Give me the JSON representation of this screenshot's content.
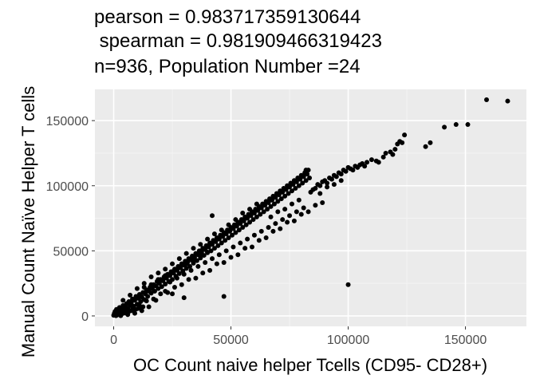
{
  "chart_data": {
    "type": "scatter",
    "title_lines": [
      "pearson = 0.983717359130644",
      " spearman = 0.981909466319423",
      "n=936, Population Number =24"
    ],
    "xlabel": "OC Count naive helper Tcells (CD95- CD28+)",
    "ylabel": "Manual Count Naïve Helper T cells",
    "xlim": [
      -8000,
      176000
    ],
    "ylim": [
      -8000,
      174000
    ],
    "x_ticks": [
      0,
      50000,
      100000,
      150000
    ],
    "x_tick_labels": [
      "0",
      "50000",
      "100000",
      "150000"
    ],
    "y_ticks": [
      0,
      50000,
      100000,
      150000
    ],
    "y_tick_labels": [
      "0",
      "50000",
      "100000",
      "150000"
    ],
    "grid": true,
    "panel_color": "#ebebeb",
    "point_color": "#000000",
    "points": [
      [
        0,
        500
      ],
      [
        300,
        2000
      ],
      [
        600,
        3500
      ],
      [
        900,
        1200
      ],
      [
        1200,
        5000
      ],
      [
        1500,
        2500
      ],
      [
        2000,
        4000
      ],
      [
        2500,
        6500
      ],
      [
        3000,
        3000
      ],
      [
        3500,
        5500
      ],
      [
        4000,
        8000
      ],
      [
        4500,
        4500
      ],
      [
        5000,
        7000
      ],
      [
        5500,
        9500
      ],
      [
        6000,
        6000
      ],
      [
        6500,
        11000
      ],
      [
        7000,
        8500
      ],
      [
        7500,
        10000
      ],
      [
        8000,
        13000
      ],
      [
        8500,
        7500
      ],
      [
        9000,
        12000
      ],
      [
        9500,
        15000
      ],
      [
        10000,
        9000
      ],
      [
        10500,
        13500
      ],
      [
        11000,
        16500
      ],
      [
        11500,
        11000
      ],
      [
        12000,
        14500
      ],
      [
        12500,
        18000
      ],
      [
        13000,
        12500
      ],
      [
        13500,
        17000
      ],
      [
        14000,
        20000
      ],
      [
        14500,
        15000
      ],
      [
        15000,
        19000
      ],
      [
        15500,
        22000
      ],
      [
        16000,
        17500
      ],
      [
        16500,
        21000
      ],
      [
        17000,
        24000
      ],
      [
        17500,
        19000
      ],
      [
        18000,
        23000
      ],
      [
        18500,
        26500
      ],
      [
        19000,
        21000
      ],
      [
        19500,
        25000
      ],
      [
        20000,
        28000
      ],
      [
        20500,
        22500
      ],
      [
        21000,
        27000
      ],
      [
        21500,
        30000
      ],
      [
        22000,
        24500
      ],
      [
        22500,
        29000
      ],
      [
        23000,
        32000
      ],
      [
        23500,
        26500
      ],
      [
        24000,
        31000
      ],
      [
        24500,
        34000
      ],
      [
        25000,
        28000
      ],
      [
        25500,
        33000
      ],
      [
        26000,
        36000
      ],
      [
        26500,
        30500
      ],
      [
        27000,
        35000
      ],
      [
        27500,
        38000
      ],
      [
        28000,
        32500
      ],
      [
        28500,
        37000
      ],
      [
        29000,
        40000
      ],
      [
        29500,
        34500
      ],
      [
        30000,
        39000
      ],
      [
        30500,
        42000
      ],
      [
        31000,
        36500
      ],
      [
        31500,
        41000
      ],
      [
        32000,
        44000
      ],
      [
        32500,
        38000
      ],
      [
        33000,
        43000
      ],
      [
        33500,
        46000
      ],
      [
        34000,
        40500
      ],
      [
        34500,
        45000
      ],
      [
        35000,
        48000
      ],
      [
        35500,
        42500
      ],
      [
        36000,
        47000
      ],
      [
        36500,
        50000
      ],
      [
        37000,
        44500
      ],
      [
        37500,
        49000
      ],
      [
        38000,
        52000
      ],
      [
        38500,
        46500
      ],
      [
        39000,
        51000
      ],
      [
        39500,
        54000
      ],
      [
        40000,
        48500
      ],
      [
        40500,
        53000
      ],
      [
        41000,
        56000
      ],
      [
        41500,
        50000
      ],
      [
        42000,
        55000
      ],
      [
        42500,
        58000
      ],
      [
        43000,
        52000
      ],
      [
        43500,
        57000
      ],
      [
        44000,
        60000
      ],
      [
        44500,
        54000
      ],
      [
        45000,
        59000
      ],
      [
        45500,
        62000
      ],
      [
        46000,
        56000
      ],
      [
        46500,
        61000
      ],
      [
        47000,
        64000
      ],
      [
        47500,
        58000
      ],
      [
        48000,
        63000
      ],
      [
        48500,
        66000
      ],
      [
        49000,
        60000
      ],
      [
        49500,
        65000
      ],
      [
        50000,
        68000
      ],
      [
        50500,
        62000
      ],
      [
        51000,
        67000
      ],
      [
        51500,
        70000
      ],
      [
        52000,
        64000
      ],
      [
        52500,
        69000
      ],
      [
        53000,
        72000
      ],
      [
        53500,
        66000
      ],
      [
        54000,
        71000
      ],
      [
        54500,
        74000
      ],
      [
        55000,
        68000
      ],
      [
        55500,
        73000
      ],
      [
        56000,
        76000
      ],
      [
        56500,
        70000
      ],
      [
        57000,
        75000
      ],
      [
        57500,
        78000
      ],
      [
        58000,
        72000
      ],
      [
        58500,
        77000
      ],
      [
        59000,
        80000
      ],
      [
        59500,
        74000
      ],
      [
        60000,
        79000
      ],
      [
        60500,
        82000
      ],
      [
        61000,
        76000
      ],
      [
        61500,
        81000
      ],
      [
        62000,
        84000
      ],
      [
        62500,
        78000
      ],
      [
        63000,
        83000
      ],
      [
        63500,
        86000
      ],
      [
        64000,
        80000
      ],
      [
        64500,
        85000
      ],
      [
        65000,
        88000
      ],
      [
        65500,
        82000
      ],
      [
        66000,
        87000
      ],
      [
        66500,
        90000
      ],
      [
        67000,
        84000
      ],
      [
        67500,
        89000
      ],
      [
        68000,
        92000
      ],
      [
        68500,
        86000
      ],
      [
        69000,
        91000
      ],
      [
        69500,
        94000
      ],
      [
        70000,
        88000
      ],
      [
        70500,
        93000
      ],
      [
        71000,
        96000
      ],
      [
        71500,
        90000
      ],
      [
        72000,
        95000
      ],
      [
        72500,
        98000
      ],
      [
        73000,
        92000
      ],
      [
        73500,
        97000
      ],
      [
        74000,
        100000
      ],
      [
        74500,
        94000
      ],
      [
        75000,
        99000
      ],
      [
        75500,
        102000
      ],
      [
        76000,
        96000
      ],
      [
        76500,
        101000
      ],
      [
        77000,
        104000
      ],
      [
        77500,
        98000
      ],
      [
        78000,
        103000
      ],
      [
        78500,
        106000
      ],
      [
        79000,
        100000
      ],
      [
        79500,
        105000
      ],
      [
        80000,
        108000
      ],
      [
        80500,
        102000
      ],
      [
        81000,
        107000
      ],
      [
        81500,
        110000
      ],
      [
        82000,
        104000
      ],
      [
        82500,
        109000
      ],
      [
        83000,
        112000
      ],
      [
        83500,
        106000
      ],
      [
        2000,
        1500
      ],
      [
        5000,
        3500
      ],
      [
        8000,
        6500
      ],
      [
        11000,
        8000
      ],
      [
        14000,
        11500
      ],
      [
        17000,
        13000
      ],
      [
        20000,
        17000
      ],
      [
        23000,
        18000
      ],
      [
        26000,
        22000
      ],
      [
        29000,
        24000
      ],
      [
        32000,
        28000
      ],
      [
        35000,
        29000
      ],
      [
        38000,
        33000
      ],
      [
        41000,
        35000
      ],
      [
        44000,
        40000
      ],
      [
        47000,
        41000
      ],
      [
        50000,
        45000
      ],
      [
        53000,
        47000
      ],
      [
        56000,
        52000
      ],
      [
        59000,
        53000
      ],
      [
        62000,
        58000
      ],
      [
        65000,
        60000
      ],
      [
        68000,
        65000
      ],
      [
        71000,
        67000
      ],
      [
        74000,
        72000
      ],
      [
        77000,
        73000
      ],
      [
        80000,
        78000
      ],
      [
        83000,
        80000
      ],
      [
        86000,
        85000
      ],
      [
        89000,
        87000
      ],
      [
        4000,
        12000
      ],
      [
        7000,
        16000
      ],
      [
        10000,
        21000
      ],
      [
        13000,
        25000
      ],
      [
        16000,
        30000
      ],
      [
        19000,
        33000
      ],
      [
        22000,
        36000
      ],
      [
        25000,
        40000
      ],
      [
        28000,
        44000
      ],
      [
        31000,
        48000
      ],
      [
        34000,
        52000
      ],
      [
        37000,
        55000
      ],
      [
        40000,
        59000
      ],
      [
        43000,
        63000
      ],
      [
        46000,
        66000
      ],
      [
        49000,
        70000
      ],
      [
        52000,
        74000
      ],
      [
        55000,
        79000
      ],
      [
        58000,
        82000
      ],
      [
        61000,
        86000
      ],
      [
        84000,
        95000
      ],
      [
        86000,
        98000
      ],
      [
        87000,
        101000
      ],
      [
        88000,
        100000
      ],
      [
        89000,
        103000
      ],
      [
        90000,
        104000
      ],
      [
        91000,
        102000
      ],
      [
        92000,
        106000
      ],
      [
        93000,
        105000
      ],
      [
        94000,
        108000
      ],
      [
        95000,
        107000
      ],
      [
        96000,
        110000
      ],
      [
        97000,
        109000
      ],
      [
        98000,
        112000
      ],
      [
        99000,
        111000
      ],
      [
        100000,
        114000
      ],
      [
        101000,
        113000
      ],
      [
        102000,
        112000
      ],
      [
        103000,
        115000
      ],
      [
        104000,
        114000
      ],
      [
        105000,
        116000
      ],
      [
        106000,
        117000
      ],
      [
        107000,
        115000
      ],
      [
        108000,
        118000
      ],
      [
        110000,
        120000
      ],
      [
        112000,
        119000
      ],
      [
        113000,
        118000
      ],
      [
        115000,
        122000
      ],
      [
        116000,
        125000
      ],
      [
        118000,
        126000
      ],
      [
        119000,
        124000
      ],
      [
        120000,
        128000
      ],
      [
        121000,
        132000
      ],
      [
        122000,
        134000
      ],
      [
        123000,
        133000
      ],
      [
        124000,
        139000
      ],
      [
        133000,
        130000
      ],
      [
        135000,
        133000
      ],
      [
        141000,
        145000
      ],
      [
        146000,
        147000
      ],
      [
        151000,
        147000
      ],
      [
        159000,
        166000
      ],
      [
        168000,
        165000
      ],
      [
        82000,
        112000
      ],
      [
        42000,
        77000
      ],
      [
        100000,
        24000
      ],
      [
        47000,
        15000
      ],
      [
        30000,
        14000
      ],
      [
        25000,
        17000
      ],
      [
        22000,
        19000
      ],
      [
        18000,
        12000
      ],
      [
        15000,
        7000
      ],
      [
        12000,
        4000
      ],
      [
        9000,
        2000
      ],
      [
        6000,
        1000
      ],
      [
        3000,
        200
      ],
      [
        1000,
        200
      ],
      [
        500,
        600
      ],
      [
        1500,
        800
      ],
      [
        2500,
        1000
      ],
      [
        3500,
        1600
      ],
      [
        4500,
        2200
      ],
      [
        5500,
        2800
      ],
      [
        6500,
        3400
      ],
      [
        7500,
        4000
      ],
      [
        8500,
        4600
      ],
      [
        9500,
        5200
      ],
      [
        10500,
        5800
      ],
      [
        11500,
        6400
      ],
      [
        12500,
        7000
      ],
      [
        24000,
        26000
      ],
      [
        27000,
        29000
      ],
      [
        30000,
        32000
      ],
      [
        33000,
        35000
      ],
      [
        36000,
        38000
      ],
      [
        39000,
        41000
      ],
      [
        42000,
        44000
      ],
      [
        45000,
        47000
      ],
      [
        48000,
        50000
      ],
      [
        51000,
        53000
      ],
      [
        54000,
        56000
      ],
      [
        57000,
        59000
      ],
      [
        60000,
        62000
      ],
      [
        63000,
        65000
      ],
      [
        66000,
        68000
      ],
      [
        69000,
        71000
      ],
      [
        72000,
        74000
      ],
      [
        75000,
        77000
      ],
      [
        78000,
        80000
      ],
      [
        81000,
        83000
      ],
      [
        13000,
        22000
      ],
      [
        16000,
        24000
      ],
      [
        19000,
        28000
      ],
      [
        22000,
        31000
      ],
      [
        25000,
        34000
      ],
      [
        28000,
        37000
      ],
      [
        31000,
        40000
      ],
      [
        34000,
        43000
      ],
      [
        37000,
        46000
      ],
      [
        40000,
        49000
      ],
      [
        67000,
        76000
      ],
      [
        70000,
        80000
      ],
      [
        73000,
        82000
      ],
      [
        76000,
        86000
      ],
      [
        79000,
        89000
      ],
      [
        85000,
        97000
      ],
      [
        88000,
        94000
      ],
      [
        91000,
        99000
      ],
      [
        94000,
        101000
      ],
      [
        97000,
        104000
      ]
    ]
  }
}
